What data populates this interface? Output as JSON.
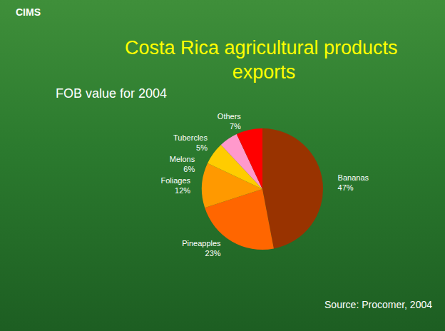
{
  "chart_data": {
    "type": "pie",
    "title": "Costa Rica agricultural products exports",
    "subtitle": "FOB value for 2004",
    "logo": "CIMS",
    "source": "Source: Procomer, 2004",
    "categories": [
      "Bananas",
      "Pineapples",
      "Foliages",
      "Melons",
      "Tubercles",
      "Others"
    ],
    "values": [
      47,
      23,
      12,
      6,
      5,
      7
    ],
    "value_labels": [
      "47%",
      "23%",
      "12%",
      "6%",
      "5%",
      "7%"
    ],
    "colors": [
      "#993300",
      "#ff6600",
      "#ff9900",
      "#ffcc00",
      "#ff99cc",
      "#ff0000"
    ],
    "data_labels": true
  }
}
